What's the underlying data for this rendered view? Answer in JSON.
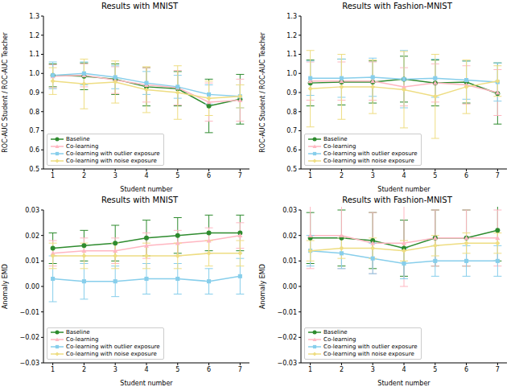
{
  "chart_data": [
    {
      "type": "line",
      "title": "Results with MNIST",
      "x_label": "Student number",
      "y_label": "ROC-AUC Student / ROC-AUC Teacher",
      "x": [
        1,
        2,
        3,
        4,
        5,
        6,
        7
      ],
      "xlim": [
        0.7,
        7.3
      ],
      "xticks": [
        1,
        2,
        3,
        4,
        5,
        6,
        7
      ],
      "ylim": [
        0.5,
        1.3
      ],
      "yticks": [
        0.5,
        0.6,
        0.7,
        0.8,
        0.9,
        {
          "value": 1.0,
          "label": "1.0"
        },
        1.1,
        1.2,
        1.3
      ],
      "grid": false,
      "legend": "lower left",
      "series": [
        {
          "name": "Baseline",
          "color": "#2e8b2e",
          "marker": "circle",
          "values": [
            0.99,
            0.985,
            0.97,
            0.93,
            0.92,
            0.83,
            0.865
          ],
          "errors": [
            0.06,
            0.07,
            0.08,
            0.1,
            0.09,
            0.14,
            0.13
          ]
        },
        {
          "name": "Co-learning",
          "color": "#ffb6c1",
          "marker": "triangle",
          "values": [
            0.985,
            0.99,
            0.965,
            0.94,
            0.925,
            0.85,
            0.86
          ],
          "errors": [
            0.06,
            0.06,
            0.07,
            0.09,
            0.09,
            0.1,
            0.11
          ]
        },
        {
          "name": "Co-learning with outlier exposure",
          "color": "#87ceeb",
          "marker": "square",
          "values": [
            0.99,
            1.0,
            0.98,
            0.95,
            0.93,
            0.89,
            0.88
          ],
          "errors": [
            0.07,
            0.06,
            0.06,
            0.06,
            0.06,
            0.05,
            0.06
          ]
        },
        {
          "name": "Co-learning with noise exposure",
          "color": "#eedd82",
          "marker": "diamond",
          "values": [
            0.96,
            0.945,
            0.955,
            0.915,
            0.9,
            0.87,
            0.88
          ],
          "errors": [
            0.07,
            0.13,
            0.11,
            0.12,
            0.14,
            0.09,
            0.06
          ]
        }
      ]
    },
    {
      "type": "line",
      "title": "Results with Fashion-MNIST",
      "x_label": "Student number",
      "y_label": "ROC-AUC Student / ROC-AUC Teacher",
      "x": [
        1,
        2,
        3,
        4,
        5,
        6,
        7
      ],
      "xlim": [
        0.7,
        7.3
      ],
      "xticks": [
        1,
        2,
        3,
        4,
        5,
        6,
        7
      ],
      "ylim": [
        0.5,
        1.3
      ],
      "yticks": [
        0.5,
        0.6,
        0.7,
        0.8,
        0.9,
        {
          "value": 1.0,
          "label": "1.0"
        },
        1.1,
        1.2,
        1.3
      ],
      "grid": false,
      "legend": "lower left",
      "series": [
        {
          "name": "Baseline",
          "color": "#2e8b2e",
          "marker": "circle",
          "values": [
            0.95,
            0.955,
            0.955,
            0.97,
            0.95,
            0.955,
            0.895
          ],
          "errors": [
            0.12,
            0.12,
            0.11,
            0.12,
            0.12,
            0.11,
            0.16
          ]
        },
        {
          "name": "Co-learning",
          "color": "#ffb6c1",
          "marker": "triangle",
          "values": [
            0.96,
            0.96,
            0.96,
            0.93,
            0.95,
            0.94,
            0.9
          ],
          "errors": [
            0.1,
            0.1,
            0.1,
            0.1,
            0.1,
            0.1,
            0.12
          ]
        },
        {
          "name": "Co-learning with outlier exposure",
          "color": "#87ceeb",
          "marker": "square",
          "values": [
            0.975,
            0.975,
            0.98,
            0.97,
            0.975,
            0.965,
            0.955
          ],
          "errors": [
            0.09,
            0.1,
            0.1,
            0.15,
            0.1,
            0.1,
            0.1
          ]
        },
        {
          "name": "Co-learning with noise exposure",
          "color": "#eedd82",
          "marker": "diamond",
          "values": [
            0.92,
            0.93,
            0.93,
            0.915,
            0.88,
            0.93,
            0.96
          ],
          "errors": [
            0.2,
            0.17,
            0.14,
            0.2,
            0.22,
            0.14,
            0.08
          ]
        }
      ]
    },
    {
      "type": "line",
      "title": "Results with MNIST",
      "x_label": "Student number",
      "y_label": "Anomaly EMD",
      "x": [
        1,
        2,
        3,
        4,
        5,
        6,
        7
      ],
      "xlim": [
        0.7,
        7.3
      ],
      "xticks": [
        1,
        2,
        3,
        4,
        5,
        6,
        7
      ],
      "ylim": [
        -0.03,
        0.03
      ],
      "yticks": [
        {
          "value": -0.03,
          "label": "−0.03"
        },
        {
          "value": -0.02,
          "label": "−0.02"
        },
        {
          "value": -0.01,
          "label": "−0.01"
        },
        {
          "value": 0,
          "label": "0.00"
        },
        0.01,
        0.02,
        0.03
      ],
      "grid": false,
      "legend": "lower left",
      "series": [
        {
          "name": "Baseline",
          "color": "#2e8b2e",
          "marker": "circle",
          "values": [
            0.015,
            0.016,
            0.017,
            0.019,
            0.02,
            0.021,
            0.021
          ],
          "errors": [
            0.006,
            0.006,
            0.007,
            0.007,
            0.007,
            0.007,
            0.007
          ]
        },
        {
          "name": "Co-learning",
          "color": "#ffb6c1",
          "marker": "triangle",
          "values": [
            0.013,
            0.014,
            0.014,
            0.016,
            0.017,
            0.018,
            0.02
          ],
          "errors": [
            0.005,
            0.005,
            0.005,
            0.005,
            0.005,
            0.005,
            0.005
          ]
        },
        {
          "name": "Co-learning with outlier exposure",
          "color": "#87ceeb",
          "marker": "square",
          "values": [
            0.003,
            0.002,
            0.002,
            0.003,
            0.003,
            0.002,
            0.004
          ],
          "errors": [
            0.009,
            0.007,
            0.006,
            0.006,
            0.006,
            0.005,
            0.007
          ]
        },
        {
          "name": "Co-learning with noise exposure",
          "color": "#eedd82",
          "marker": "diamond",
          "values": [
            0.012,
            0.012,
            0.012,
            0.012,
            0.012,
            0.013,
            0.013
          ],
          "errors": [
            0.005,
            0.005,
            0.005,
            0.005,
            0.005,
            0.005,
            0.005
          ]
        }
      ]
    },
    {
      "type": "line",
      "title": "Results with Fashion-MNIST",
      "x_label": "Student number",
      "y_label": "Anomaly EMD",
      "x": [
        1,
        2,
        3,
        4,
        5,
        6,
        7
      ],
      "xlim": [
        0.7,
        7.3
      ],
      "xticks": [
        1,
        2,
        3,
        4,
        5,
        6,
        7
      ],
      "ylim": [
        -0.03,
        0.03
      ],
      "yticks": [
        {
          "value": -0.03,
          "label": "−0.03"
        },
        {
          "value": -0.02,
          "label": "−0.02"
        },
        {
          "value": -0.01,
          "label": "−0.01"
        },
        {
          "value": 0,
          "label": "0.00"
        },
        0.01,
        0.02,
        0.03
      ],
      "grid": false,
      "legend": "lower left",
      "series": [
        {
          "name": "Baseline",
          "color": "#2e8b2e",
          "marker": "circle",
          "values": [
            0.019,
            0.019,
            0.018,
            0.015,
            0.019,
            0.019,
            0.022
          ],
          "errors": [
            0.01,
            0.011,
            0.011,
            0.011,
            0.011,
            0.011,
            0.012
          ]
        },
        {
          "name": "Co-learning",
          "color": "#ffb6c1",
          "marker": "triangle",
          "values": [
            0.02,
            0.02,
            0.017,
            0.017,
            0.019,
            0.019,
            0.019
          ],
          "errors": [
            0.013,
            0.013,
            0.012,
            0.017,
            0.011,
            0.011,
            0.011
          ]
        },
        {
          "name": "Co-learning with outlier exposure",
          "color": "#87ceeb",
          "marker": "square",
          "values": [
            0.014,
            0.013,
            0.011,
            0.009,
            0.01,
            0.01,
            0.01
          ],
          "errors": [
            0.006,
            0.006,
            0.006,
            0.006,
            0.006,
            0.006,
            0.006
          ]
        },
        {
          "name": "Co-learning with noise exposure",
          "color": "#eedd82",
          "marker": "diamond",
          "values": [
            0.014,
            0.015,
            0.015,
            0.014,
            0.016,
            0.017,
            0.017
          ],
          "errors": [
            0.004,
            0.004,
            0.004,
            0.004,
            0.004,
            0.004,
            0.004
          ]
        }
      ]
    }
  ]
}
